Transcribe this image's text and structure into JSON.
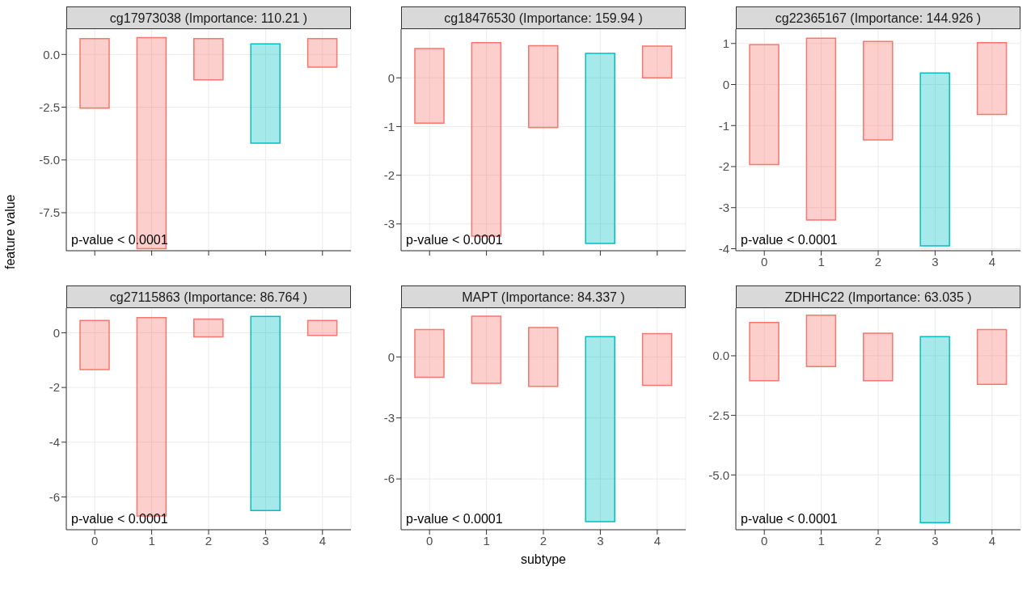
{
  "chart_data": [
    {
      "type": "bar",
      "title": "cg17973038 (Importance: 110.21 )",
      "categories": [
        "0",
        "1",
        "2",
        "3",
        "4"
      ],
      "base": [
        -2.55,
        -9.2,
        -1.2,
        -4.2,
        -0.6
      ],
      "values": [
        3.3,
        10.0,
        1.95,
        4.7,
        1.35
      ],
      "colors": [
        "#f8766d",
        "#f8766d",
        "#f8766d",
        "#00bfc4",
        "#f8766d"
      ],
      "ylim": [
        -9.3,
        1.2
      ],
      "yticks": [
        {
          "value": -7.5,
          "label": "-7.5"
        },
        {
          "value": -5,
          "label": "-5.0"
        },
        {
          "value": -2.5,
          "label": "-2.5"
        },
        {
          "value": 0,
          "label": "0.0"
        }
      ],
      "grid": true,
      "tick_labels": "y",
      "annotations": [
        "p-value < 0.0001"
      ]
    },
    {
      "type": "bar",
      "title": "cg18476530 (Importance: 159.94 )",
      "categories": [
        "0",
        "1",
        "2",
        "3",
        "4"
      ],
      "base": [
        -0.93,
        -3.25,
        -1.02,
        -3.4,
        0
      ],
      "values": [
        1.53,
        3.97,
        1.68,
        3.9,
        0.65
      ],
      "colors": [
        "#f8766d",
        "#f8766d",
        "#f8766d",
        "#00bfc4",
        "#f8766d"
      ],
      "ylim": [
        -3.55,
        1.0
      ],
      "yticks": [
        -3,
        -2,
        -1,
        0
      ],
      "grid": true,
      "tick_labels": "y",
      "annotations": [
        "p-value < 0.0001"
      ]
    },
    {
      "type": "bar",
      "title": "cg22365167 (Importance: 144.926 )",
      "categories": [
        "0",
        "1",
        "2",
        "3",
        "4"
      ],
      "base": [
        -1.95,
        -3.3,
        -1.35,
        -3.93,
        -0.73
      ],
      "values": [
        2.92,
        4.43,
        2.4,
        4.21,
        1.75
      ],
      "colors": [
        "#f8766d",
        "#f8766d",
        "#f8766d",
        "#00bfc4",
        "#f8766d"
      ],
      "ylim": [
        -4.05,
        1.35
      ],
      "yticks": [
        -4,
        -3,
        -2,
        -1,
        0,
        1
      ],
      "grid": true,
      "annotations": [
        "p-value < 0.0001"
      ]
    },
    {
      "type": "bar",
      "title": "cg27115863 (Importance: 86.764 )",
      "ylabel": "feature value",
      "categories": [
        "0",
        "1",
        "2",
        "3",
        "4"
      ],
      "base": [
        -1.35,
        -6.7,
        -0.15,
        -6.5,
        -0.1
      ],
      "values": [
        1.8,
        7.25,
        0.65,
        7.1,
        0.55
      ],
      "colors": [
        "#f8766d",
        "#f8766d",
        "#f8766d",
        "#00bfc4",
        "#f8766d"
      ],
      "ylim": [
        -7.2,
        0.9
      ],
      "yticks": [
        -6,
        -4,
        -2,
        0
      ],
      "grid": true,
      "annotations": [
        "p-value < 0.0001"
      ]
    },
    {
      "type": "bar",
      "title": "MAPT (Importance: 84.337 )",
      "xlabel": "subtype",
      "categories": [
        "0",
        "1",
        "2",
        "3",
        "4"
      ],
      "base": [
        -1.0,
        -1.3,
        -1.45,
        -8.1,
        -1.4
      ],
      "values": [
        2.35,
        3.3,
        2.9,
        9.1,
        2.55
      ],
      "colors": [
        "#f8766d",
        "#f8766d",
        "#f8766d",
        "#00bfc4",
        "#f8766d"
      ],
      "ylim": [
        -8.5,
        2.4
      ],
      "yticks": [
        -6,
        -3,
        0
      ],
      "grid": true,
      "annotations": [
        "p-value < 0.0001"
      ]
    },
    {
      "type": "bar",
      "title": "ZDHHC22 (Importance: 63.035 )",
      "categories": [
        "0",
        "1",
        "2",
        "3",
        "4"
      ],
      "base": [
        -1.05,
        -0.45,
        -1.05,
        -7.0,
        -1.2
      ],
      "values": [
        2.45,
        2.15,
        2.0,
        7.8,
        2.3
      ],
      "colors": [
        "#f8766d",
        "#f8766d",
        "#f8766d",
        "#00bfc4",
        "#f8766d"
      ],
      "ylim": [
        -7.3,
        2.0
      ],
      "yticks": [
        {
          "value": -5,
          "label": "-5.0"
        },
        {
          "value": -2.5,
          "label": "-2.5"
        },
        {
          "value": 0,
          "label": "0.0"
        }
      ],
      "grid": true,
      "annotations": [
        "p-value < 0.0001"
      ]
    }
  ]
}
